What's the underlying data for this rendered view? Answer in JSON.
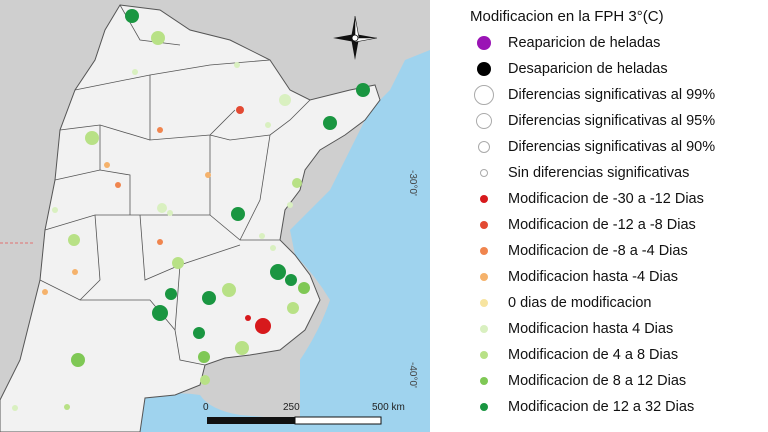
{
  "legend": {
    "title": "Modificacion en la FPH 3°(C)",
    "items": [
      {
        "label": "Reaparicion de heladas",
        "color": "#9a14b5",
        "size": 14,
        "border": "none"
      },
      {
        "label": "Desaparicion de heladas",
        "color": "#000000",
        "size": 14,
        "border": "none"
      },
      {
        "label": "Diferencias significativas al 99%",
        "color": "#ffffff",
        "size": 20,
        "border": "#aaaaaa"
      },
      {
        "label": "Diferencias significativas al 95%",
        "color": "#ffffff",
        "size": 16,
        "border": "#aaaaaa"
      },
      {
        "label": "Diferencias significativas al 90%",
        "color": "#ffffff",
        "size": 12,
        "border": "#aaaaaa"
      },
      {
        "label": "Sin diferencias significativas",
        "color": "#ffffff",
        "size": 8,
        "border": "#aaaaaa"
      },
      {
        "label": "Modificacion de -30 a -12 Dias",
        "color": "#d7191c",
        "size": 8,
        "border": "none"
      },
      {
        "label": "Modificacion de -12 a -8 Dias",
        "color": "#e34a33",
        "size": 8,
        "border": "none"
      },
      {
        "label": "Modificacion de -8 a -4 Dias",
        "color": "#f0854e",
        "size": 8,
        "border": "none"
      },
      {
        "label": "Modificacion hasta -4 Dias",
        "color": "#f5b26b",
        "size": 8,
        "border": "none"
      },
      {
        "label": "0 dias de modificacion",
        "color": "#f7e4a0",
        "size": 8,
        "border": "none"
      },
      {
        "label": "Modificacion hasta 4 Dias",
        "color": "#d9f0c0",
        "size": 8,
        "border": "none"
      },
      {
        "label": "Modificacion de 4 a 8 Dias",
        "color": "#b8e186",
        "size": 8,
        "border": "none"
      },
      {
        "label": "Modificacion de 8 a 12 Dias",
        "color": "#7fc855",
        "size": 8,
        "border": "none"
      },
      {
        "label": "Modificacion de 12 a 32 Dias",
        "color": "#1a9641",
        "size": 8,
        "border": "none"
      }
    ]
  },
  "map": {
    "lat_labels": [
      "-30°0'",
      "-40°0'"
    ],
    "scale": {
      "ticks": [
        "0",
        "250",
        "500 km"
      ]
    },
    "colors": {
      "land": "#f2f2f2",
      "outside": "#cfcfcf",
      "water": "#9fd3ee",
      "border": "#555555"
    }
  }
}
